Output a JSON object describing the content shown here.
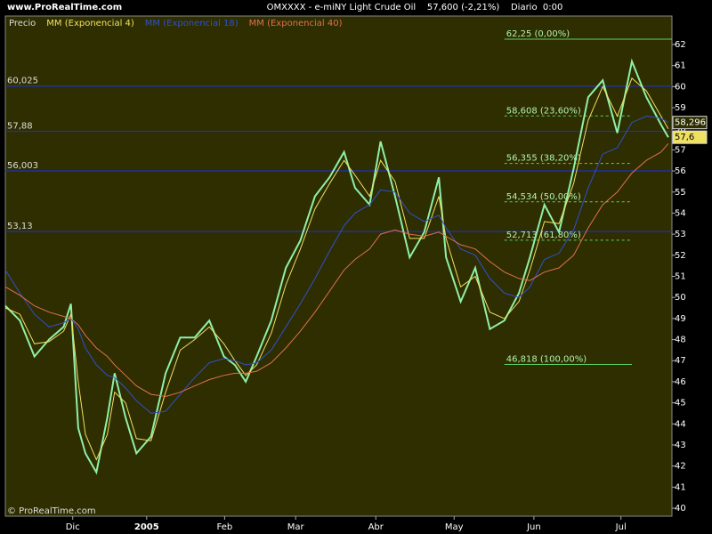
{
  "chart_data": {
    "type": "line",
    "site": "www.ProRealTime.com",
    "title": "OMXXXX - e-miNY Light Crude Oil    57,600 (-2,21%)    Diario  0:00",
    "copyright": "© ProRealTime.com",
    "x": [
      0,
      4,
      8,
      12,
      16,
      18,
      20,
      22,
      25,
      28,
      30,
      33,
      36,
      40,
      44,
      48,
      52,
      56,
      60,
      63,
      66,
      69,
      73,
      77,
      81,
      85,
      89,
      93,
      96,
      100,
      103,
      107,
      111,
      115,
      119,
      121,
      125,
      129,
      133,
      137,
      141,
      144,
      148,
      152,
      156,
      160,
      164,
      168,
      172,
      176,
      180,
      182
    ],
    "xlim": [
      0,
      183
    ],
    "xticks": [
      {
        "value": 18.5,
        "label": "Dic"
      },
      {
        "value": 38.8,
        "label": "2005"
      },
      {
        "value": 60.2,
        "label": "Feb"
      },
      {
        "value": 79.7,
        "label": "Mar"
      },
      {
        "value": 101.7,
        "label": "Abr"
      },
      {
        "value": 123.2,
        "label": "May"
      },
      {
        "value": 145.1,
        "label": "Jun"
      },
      {
        "value": 169,
        "label": "Jul"
      }
    ],
    "ylim": [
      39.62,
      63.35
    ],
    "yticks": [
      40,
      41,
      42,
      43,
      44,
      45,
      46,
      47,
      48,
      49,
      50,
      51,
      52,
      53,
      54,
      55,
      56,
      57,
      58,
      59,
      60,
      61,
      62
    ],
    "series": [
      {
        "name": "Precio",
        "color": "#8ff0a8",
        "values": [
          49.6,
          48.9,
          47.2,
          48.0,
          48.6,
          49.7,
          43.8,
          42.6,
          41.7,
          44.3,
          46.4,
          44.3,
          42.6,
          43.4,
          46.4,
          48.1,
          48.1,
          48.9,
          47.2,
          46.8,
          46.0,
          47.2,
          48.9,
          51.4,
          52.7,
          54.8,
          55.7,
          56.9,
          55.2,
          54.4,
          57.4,
          54.8,
          51.9,
          53.1,
          55.7,
          51.9,
          49.8,
          51.4,
          48.5,
          48.9,
          50.2,
          51.9,
          54.4,
          53.1,
          56.1,
          59.5,
          60.3,
          57.8,
          61.2,
          59.5,
          58.2,
          57.6
        ]
      },
      {
        "name": "MM (Exponencial 4)",
        "color": "#f0e060",
        "values": [
          49.5,
          49.2,
          47.8,
          47.9,
          48.4,
          49.2,
          46,
          43.5,
          42.3,
          43.5,
          45.5,
          45,
          43.3,
          43.2,
          45.5,
          47.5,
          48,
          48.6,
          47.8,
          47,
          46.3,
          46.8,
          48.3,
          50.6,
          52.3,
          54.2,
          55.4,
          56.5,
          55.8,
          54.8,
          56.5,
          55.5,
          52.8,
          52.8,
          54.8,
          52.8,
          50.5,
          51,
          49.3,
          49,
          49.8,
          51.3,
          53.6,
          53.5,
          55.4,
          58.4,
          60,
          58.6,
          60.4,
          59.8,
          58.6,
          58.0
        ]
      },
      {
        "name": "MM (Exponencial 18)",
        "color": "#3050d0",
        "values": [
          51.3,
          50.2,
          49.2,
          48.6,
          48.8,
          49.0,
          48.5,
          47.6,
          46.8,
          46.3,
          46.2,
          45.7,
          45.1,
          44.5,
          44.6,
          45.4,
          46.2,
          46.9,
          47.1,
          47.0,
          46.8,
          46.9,
          47.5,
          48.6,
          49.7,
          50.9,
          52.2,
          53.4,
          54.0,
          54.4,
          55.1,
          55.0,
          54.0,
          53.6,
          53.9,
          53.3,
          52.3,
          52.0,
          50.9,
          50.2,
          50.0,
          50.5,
          51.8,
          52.1,
          53.2,
          55.2,
          56.8,
          57.1,
          58.3,
          58.6,
          58.5,
          58.3
        ]
      },
      {
        "name": "MM (Exponencial 40)",
        "color": "#e07050",
        "values": [
          50.5,
          50.1,
          49.6,
          49.3,
          49.1,
          49.0,
          48.7,
          48.2,
          47.6,
          47.2,
          46.8,
          46.3,
          45.8,
          45.4,
          45.3,
          45.5,
          45.8,
          46.1,
          46.3,
          46.4,
          46.4,
          46.5,
          46.9,
          47.6,
          48.4,
          49.3,
          50.3,
          51.3,
          51.8,
          52.3,
          53.0,
          53.2,
          53.0,
          52.9,
          53.1,
          52.9,
          52.5,
          52.3,
          51.7,
          51.2,
          50.9,
          50.8,
          51.2,
          51.4,
          52.0,
          53.3,
          54.4,
          55.0,
          55.9,
          56.5,
          56.9,
          57.3
        ]
      }
    ],
    "levels": [
      {
        "value": 60.025,
        "label": "60,025"
      },
      {
        "value": 57.88,
        "label": "57,88"
      },
      {
        "value": 56.003,
        "label": "56,003"
      },
      {
        "value": 53.13,
        "label": "53,13"
      }
    ],
    "fibonacci": {
      "x": [
        137,
        172
      ],
      "levels": [
        {
          "value": 62.25,
          "label": "62,25 (0,00%)"
        },
        {
          "value": 58.608,
          "label": "58,608 (23,60%)"
        },
        {
          "value": 56.355,
          "label": "56,355 (38,20%)"
        },
        {
          "value": 54.534,
          "label": "54,534 (50,00%)"
        },
        {
          "value": 52.713,
          "label": "52,713 (61,80%)"
        },
        {
          "value": 46.818,
          "label": "46,818 (100,00%)"
        }
      ]
    },
    "last_labels": [
      {
        "value": 58.296,
        "label": "58,296"
      },
      {
        "value": 57.6,
        "label": "57,6"
      }
    ]
  }
}
